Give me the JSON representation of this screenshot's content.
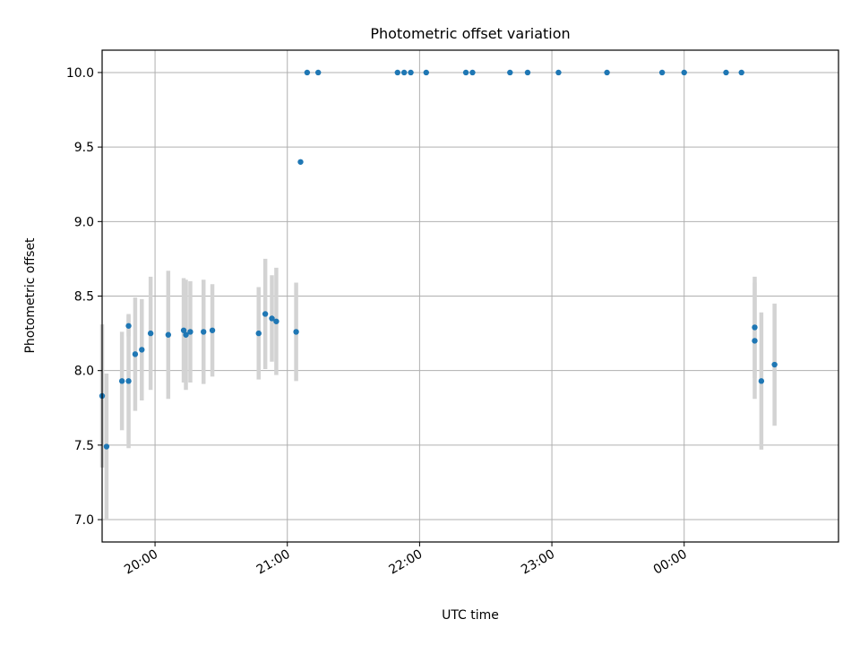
{
  "chart_data": {
    "type": "scatter",
    "title": "Photometric offset variation",
    "xlabel": "UTC time",
    "ylabel": "Photometric offset",
    "x_ticks": [
      "20:00",
      "21:00",
      "22:00",
      "23:00",
      "00:00"
    ],
    "y_ticks": [
      "7.0",
      "7.5",
      "8.0",
      "8.5",
      "9.0",
      "9.5",
      "10.0"
    ],
    "xlim": [
      "19:36",
      "01:10"
    ],
    "ylim": [
      6.85,
      10.15
    ],
    "grid": true,
    "marker_color": "#1f77b4",
    "errorbar_color": "#d3d3d3",
    "points": [
      {
        "t": "19:36",
        "y": 7.83,
        "err": 0.48
      },
      {
        "t": "19:38",
        "y": 7.49,
        "err": 0.49
      },
      {
        "t": "19:45",
        "y": 7.93,
        "err": 0.33
      },
      {
        "t": "19:48",
        "y": 8.3,
        "err": 0.07
      },
      {
        "t": "19:48",
        "y": 7.93,
        "err": 0.45
      },
      {
        "t": "19:51",
        "y": 8.11,
        "err": 0.38
      },
      {
        "t": "19:54",
        "y": 8.14,
        "err": 0.34
      },
      {
        "t": "19:58",
        "y": 8.25,
        "err": 0.38
      },
      {
        "t": "20:06",
        "y": 8.24,
        "err": 0.43
      },
      {
        "t": "20:13",
        "y": 8.27,
        "err": 0.35
      },
      {
        "t": "20:14",
        "y": 8.24,
        "err": 0.37
      },
      {
        "t": "20:16",
        "y": 8.26,
        "err": 0.34
      },
      {
        "t": "20:22",
        "y": 8.26,
        "err": 0.35
      },
      {
        "t": "20:26",
        "y": 8.27,
        "err": 0.31
      },
      {
        "t": "20:47",
        "y": 8.25,
        "err": 0.31
      },
      {
        "t": "20:50",
        "y": 8.38,
        "err": 0.37
      },
      {
        "t": "20:53",
        "y": 8.35,
        "err": 0.29
      },
      {
        "t": "20:55",
        "y": 8.33,
        "err": 0.36
      },
      {
        "t": "21:04",
        "y": 8.26,
        "err": 0.33
      },
      {
        "t": "21:06",
        "y": 9.4
      },
      {
        "t": "21:09",
        "y": 10.0
      },
      {
        "t": "21:14",
        "y": 10.0
      },
      {
        "t": "21:50",
        "y": 10.0
      },
      {
        "t": "21:53",
        "y": 10.0
      },
      {
        "t": "21:56",
        "y": 10.0
      },
      {
        "t": "22:03",
        "y": 10.0
      },
      {
        "t": "22:21",
        "y": 10.0
      },
      {
        "t": "22:24",
        "y": 10.0
      },
      {
        "t": "22:41",
        "y": 10.0
      },
      {
        "t": "22:49",
        "y": 10.0
      },
      {
        "t": "23:03",
        "y": 10.0
      },
      {
        "t": "23:25",
        "y": 10.0
      },
      {
        "t": "23:50",
        "y": 10.0
      },
      {
        "t": "00:00",
        "y": 10.0
      },
      {
        "t": "00:19",
        "y": 10.0
      },
      {
        "t": "00:26",
        "y": 10.0
      },
      {
        "t": "00:32",
        "y": 8.2,
        "err": 0.39
      },
      {
        "t": "00:32",
        "y": 8.29,
        "err": 0.34
      },
      {
        "t": "00:35",
        "y": 7.93,
        "err": 0.46
      },
      {
        "t": "00:41",
        "y": 8.04,
        "err": 0.41
      }
    ]
  }
}
